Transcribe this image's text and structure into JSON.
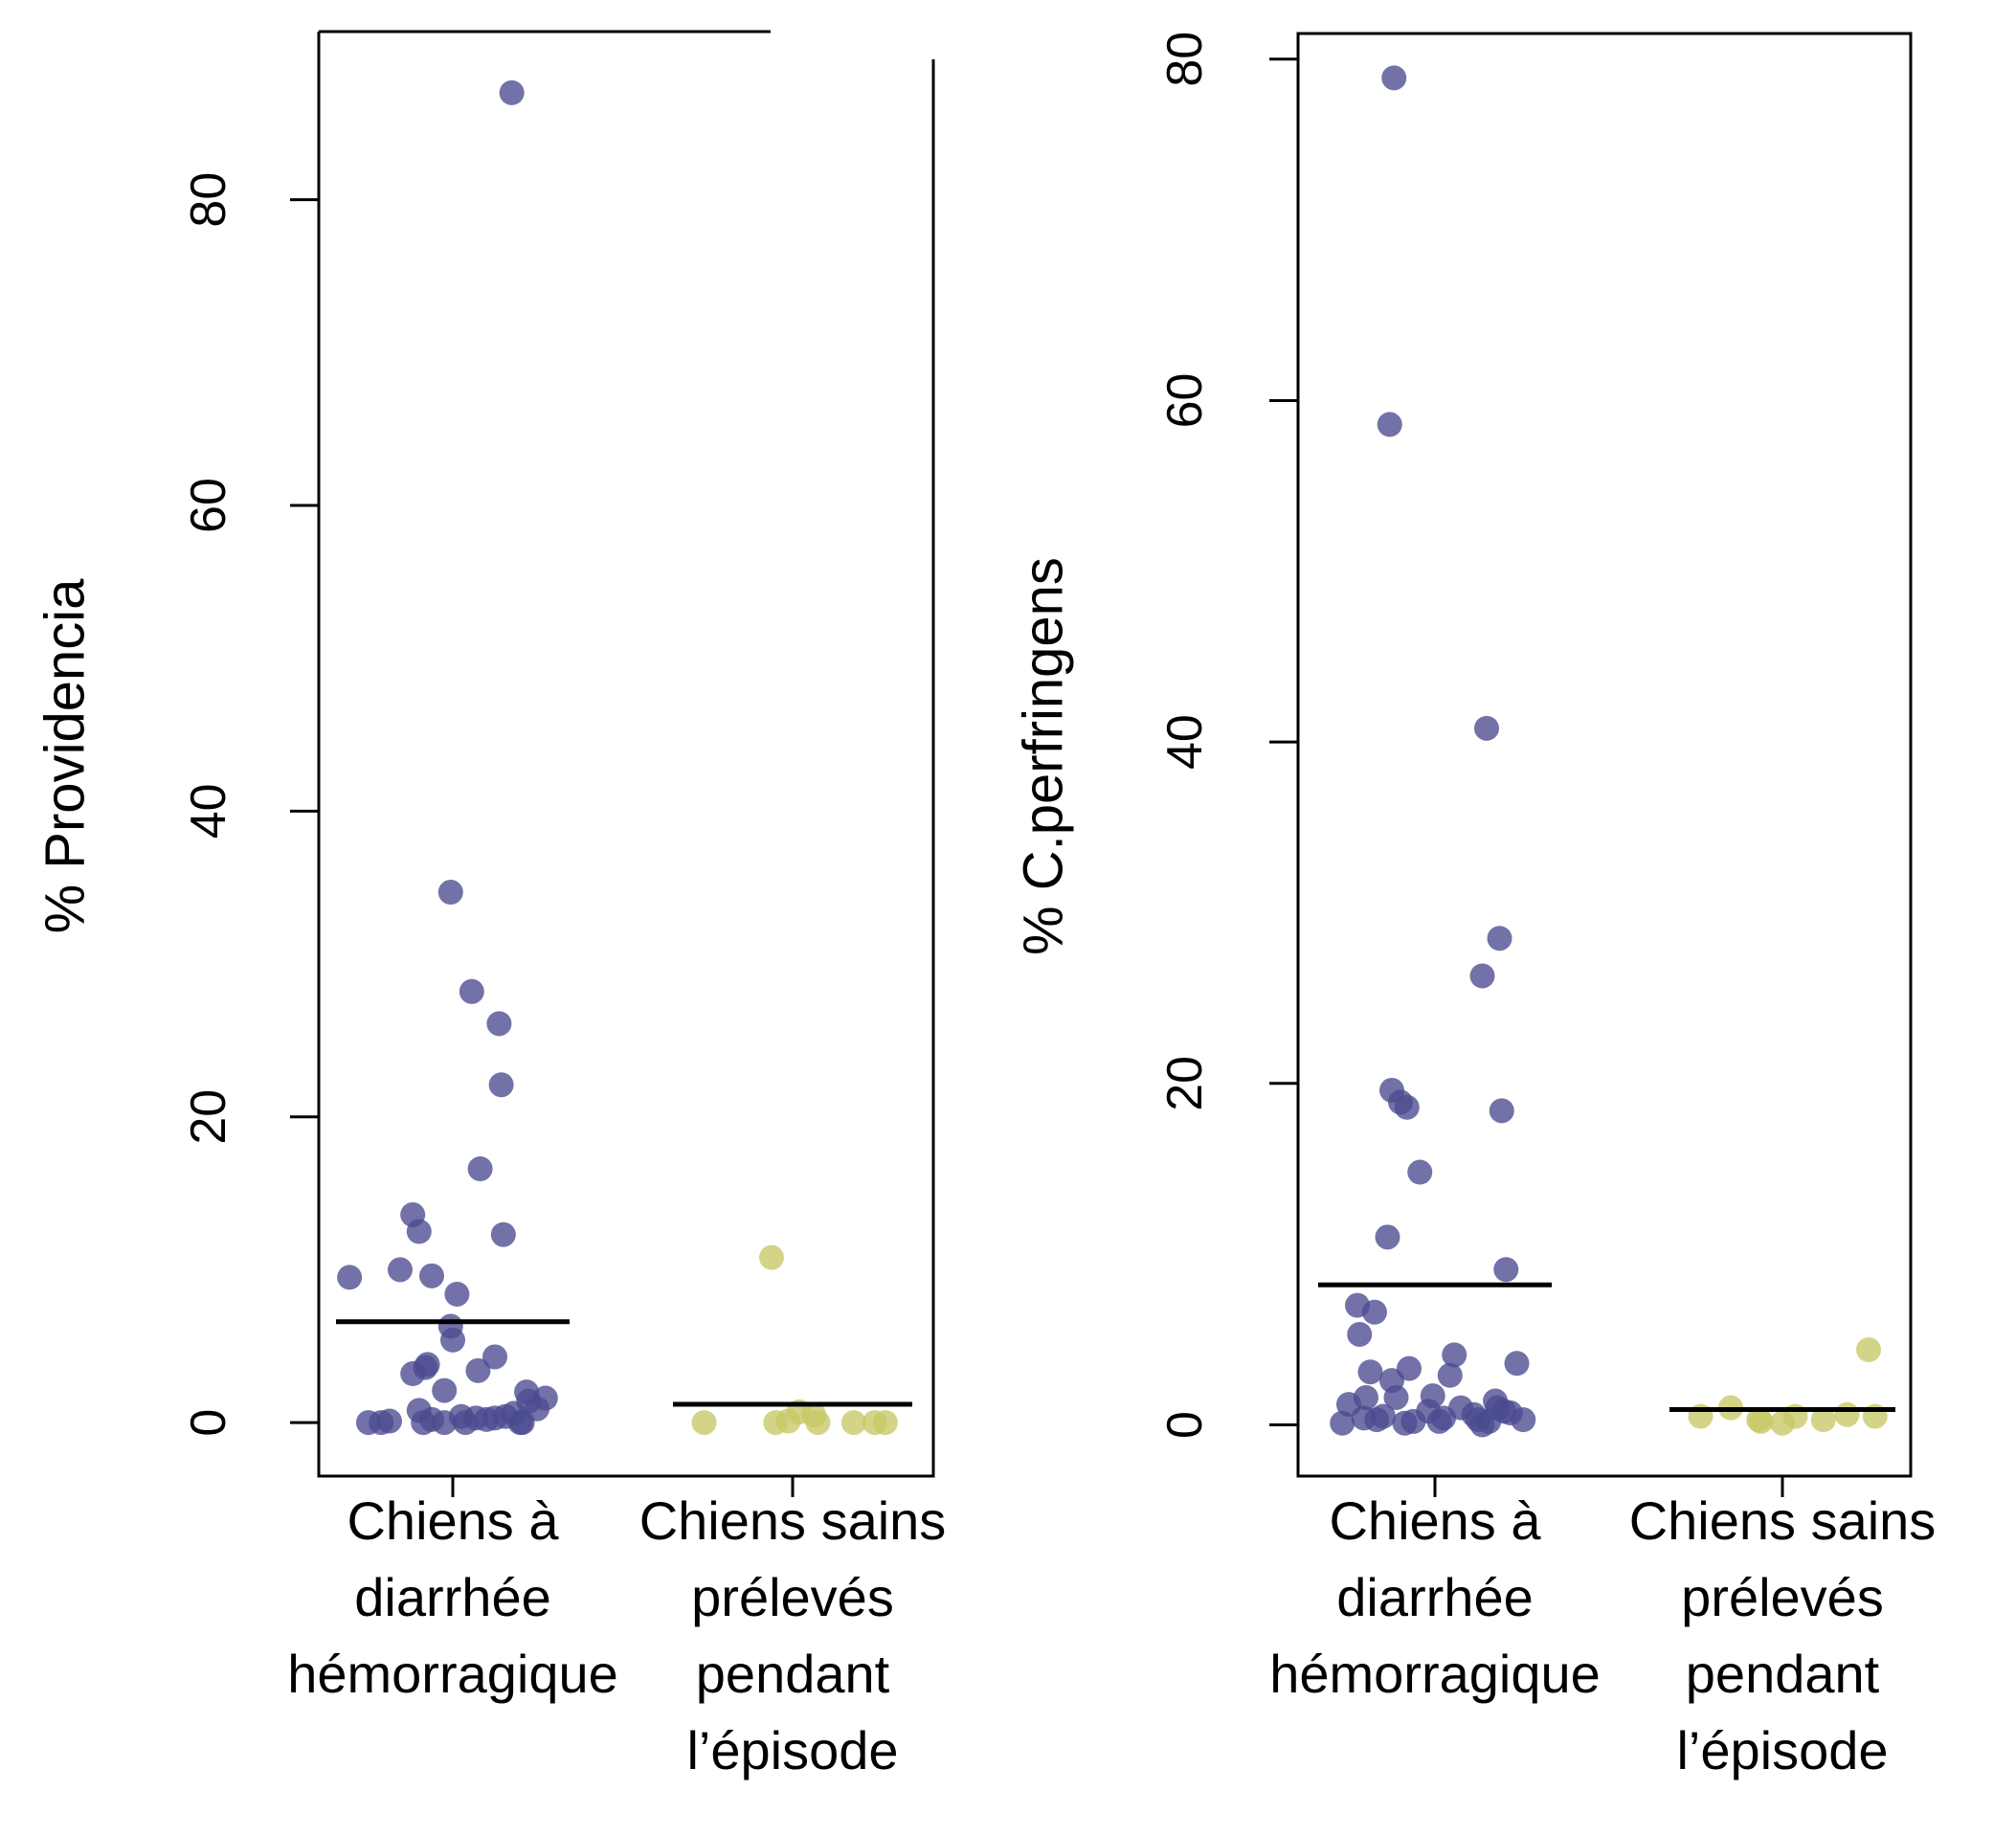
{
  "colors": {
    "group1": "#4a4a8f",
    "group2": "#c8c866",
    "mean_line": "#000000",
    "axis": "#000000"
  },
  "chart_data": [
    {
      "type": "scatter",
      "ylabel": "% Providencia",
      "ylim": [
        -3.5,
        91
      ],
      "yticks": [
        0,
        20,
        40,
        60,
        80
      ],
      "categories": [
        [
          "Chiens à",
          "diarrhée",
          "hémorragique"
        ],
        [
          "Chiens sains",
          "prélevés",
          "pendant",
          "l’épisode"
        ]
      ],
      "series": [
        {
          "means": [
            6.6,
            1.2
          ],
          "points": [
            [
              [
                -0.49,
                9.5
              ],
              [
                -0.4,
                0.0
              ],
              [
                -0.34,
                0.0
              ],
              [
                -0.3,
                0.1
              ],
              [
                -0.25,
                10.0
              ],
              [
                -0.19,
                13.6
              ],
              [
                -0.19,
                3.2
              ],
              [
                -0.16,
                12.5
              ],
              [
                -0.16,
                0.8
              ],
              [
                -0.14,
                0.0
              ],
              [
                -0.13,
                3.6
              ],
              [
                -0.12,
                3.8
              ],
              [
                -0.1,
                9.6
              ],
              [
                -0.1,
                0.2
              ],
              [
                -0.04,
                2.1
              ],
              [
                -0.04,
                0.0
              ],
              [
                -0.01,
                34.7
              ],
              [
                -0.01,
                6.3
              ],
              [
                0.0,
                5.4
              ],
              [
                0.02,
                8.4
              ],
              [
                0.04,
                0.4
              ],
              [
                0.06,
                0.0
              ],
              [
                0.09,
                28.2
              ],
              [
                0.11,
                0.3
              ],
              [
                0.12,
                3.4
              ],
              [
                0.13,
                16.6
              ],
              [
                0.16,
                0.2
              ],
              [
                0.2,
                0.3
              ],
              [
                0.2,
                4.3
              ],
              [
                0.22,
                26.1
              ],
              [
                0.23,
                22.1
              ],
              [
                0.24,
                12.3
              ],
              [
                0.25,
                0.4
              ],
              [
                0.29,
                0.6
              ],
              [
                0.32,
                0.0
              ],
              [
                0.33,
                0.0
              ],
              [
                0.35,
                2.0
              ],
              [
                0.36,
                1.4
              ],
              [
                0.4,
                0.9
              ],
              [
                0.44,
                1.6
              ],
              [
                0.28,
                87.0
              ]
            ],
            [
              [
                -0.42,
                0.0
              ],
              [
                -0.1,
                10.8
              ],
              [
                -0.08,
                0.0
              ],
              [
                -0.02,
                0.1
              ],
              [
                0.03,
                0.7
              ],
              [
                0.1,
                0.5
              ],
              [
                0.12,
                0.0
              ],
              [
                0.29,
                0.0
              ],
              [
                0.39,
                0.0
              ],
              [
                0.44,
                0.0
              ]
            ]
          ]
        }
      ]
    },
    {
      "type": "scatter",
      "ylabel": "% C.perfringens",
      "ylim": [
        -3,
        81.5
      ],
      "yticks": [
        0,
        20,
        40,
        60,
        80
      ],
      "categories": [
        [
          "Chiens à",
          "diarrhée",
          "hémorragique"
        ],
        [
          "Chiens sains",
          "prélevés",
          "pendant",
          "l’épisode"
        ]
      ],
      "series": [
        {
          "means": [
            8.2,
            0.9
          ],
          "points": [
            [
              [
                -0.43,
                0.1
              ],
              [
                -0.4,
                1.2
              ],
              [
                -0.36,
                7.0
              ],
              [
                -0.35,
                5.3
              ],
              [
                -0.33,
                0.4
              ],
              [
                -0.32,
                1.6
              ],
              [
                -0.3,
                3.1
              ],
              [
                -0.28,
                6.6
              ],
              [
                -0.27,
                0.3
              ],
              [
                -0.24,
                0.5
              ],
              [
                -0.22,
                11.0
              ],
              [
                -0.21,
                58.6
              ],
              [
                -0.2,
                19.6
              ],
              [
                -0.2,
                2.6
              ],
              [
                -0.19,
                78.9
              ],
              [
                -0.18,
                1.6
              ],
              [
                -0.16,
                18.9
              ],
              [
                -0.14,
                0.1
              ],
              [
                -0.13,
                18.6
              ],
              [
                -0.12,
                3.3
              ],
              [
                -0.1,
                0.2
              ],
              [
                -0.07,
                14.8
              ],
              [
                -0.03,
                0.8
              ],
              [
                -0.01,
                1.7
              ],
              [
                0.02,
                0.2
              ],
              [
                0.04,
                0.4
              ],
              [
                0.07,
                2.9
              ],
              [
                0.09,
                4.1
              ],
              [
                0.12,
                1.0
              ],
              [
                0.18,
                0.6
              ],
              [
                0.2,
                0.3
              ],
              [
                0.22,
                26.3
              ],
              [
                0.22,
                0.0
              ],
              [
                0.24,
                40.8
              ],
              [
                0.25,
                0.2
              ],
              [
                0.28,
                1.4
              ],
              [
                0.29,
                1.0
              ],
              [
                0.3,
                28.5
              ],
              [
                0.31,
                18.4
              ],
              [
                0.32,
                0.8
              ],
              [
                0.33,
                9.1
              ],
              [
                0.35,
                0.7
              ],
              [
                0.38,
                3.6
              ],
              [
                0.41,
                0.3
              ]
            ],
            [
              [
                -0.38,
                0.5
              ],
              [
                -0.24,
                1.0
              ],
              [
                -0.11,
                0.3
              ],
              [
                -0.1,
                0.2
              ],
              [
                0.0,
                0.1
              ],
              [
                0.06,
                0.5
              ],
              [
                0.19,
                0.3
              ],
              [
                0.3,
                0.6
              ],
              [
                0.4,
                4.4
              ],
              [
                0.43,
                0.5
              ]
            ]
          ]
        }
      ]
    }
  ]
}
